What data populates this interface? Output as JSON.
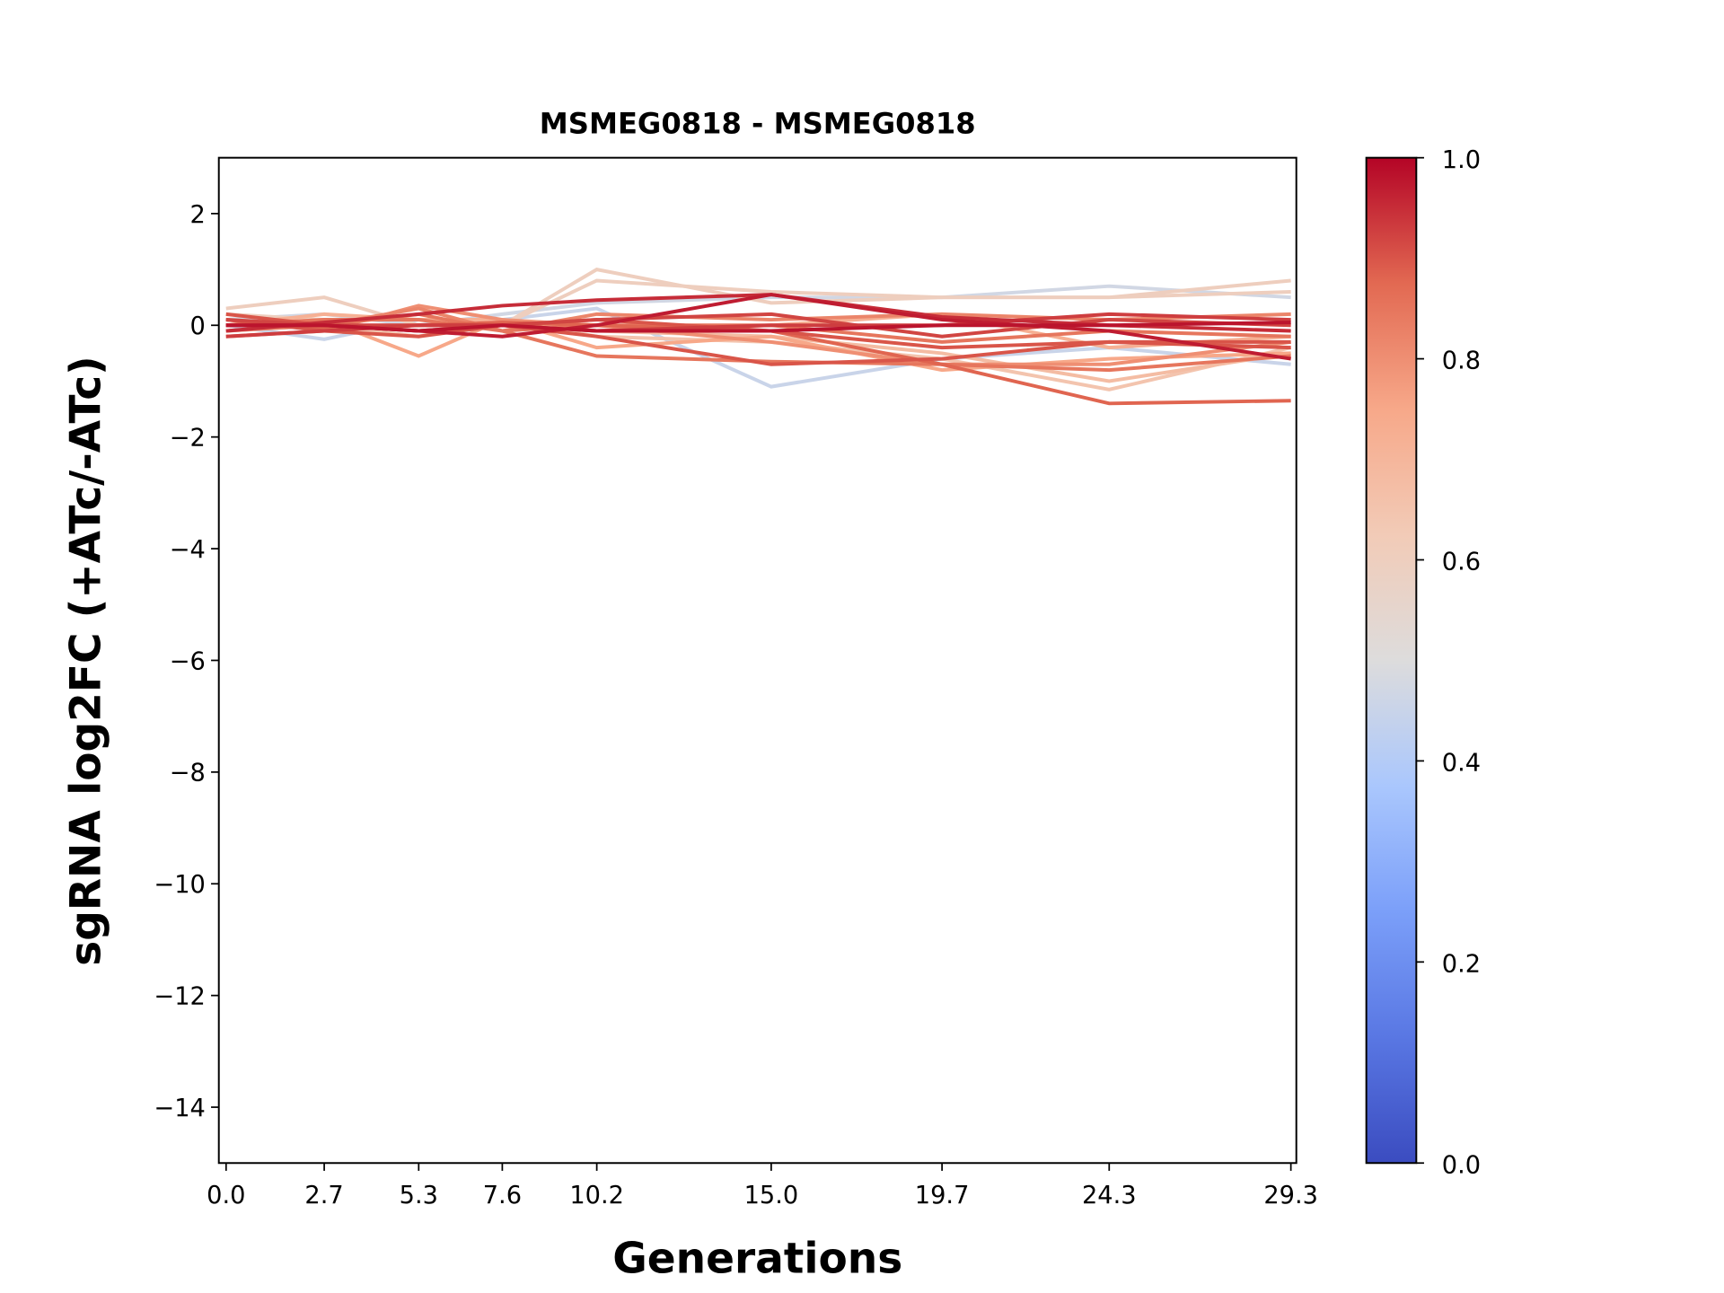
{
  "chart_data": {
    "type": "line",
    "title": "MSMEG0818 - MSMEG0818",
    "xlabel": "Generations",
    "ylabel": "sgRNA log2FC (+ATc/-ATc)",
    "x": [
      0.0,
      2.7,
      5.3,
      7.6,
      10.2,
      15.0,
      19.7,
      24.3,
      29.3
    ],
    "x_tick_labels": [
      "0.0",
      "2.7",
      "5.3",
      "7.6",
      "10.2",
      "15.0",
      "19.7",
      "24.3",
      "29.3"
    ],
    "xlim": [
      -0.2,
      29.45
    ],
    "ylim": [
      -15,
      3
    ],
    "y_ticks": [
      2,
      0,
      -2,
      -4,
      -6,
      -8,
      -10,
      -12,
      -14
    ],
    "y_tick_labels": [
      "2",
      "0",
      "−2",
      "−4",
      "−6",
      "−8",
      "−10",
      "−12",
      "−14"
    ],
    "grid": false,
    "colorbar": {
      "colormap": "coolwarm",
      "range": [
        0.0,
        1.0
      ],
      "tick_values": [
        0.0,
        0.2,
        0.4,
        0.6,
        0.8,
        1.0
      ],
      "tick_labels": [
        "0.0",
        "0.2",
        "0.4",
        "0.6",
        "0.8",
        "1.0"
      ],
      "stops": [
        [
          0.0,
          "#3b4cc0"
        ],
        [
          0.125,
          "#5977e3"
        ],
        [
          0.25,
          "#7b9ff9"
        ],
        [
          0.375,
          "#aac7fd"
        ],
        [
          0.5,
          "#dddcdc"
        ],
        [
          0.625,
          "#f2cbb7"
        ],
        [
          0.75,
          "#f7a889"
        ],
        [
          0.875,
          "#e26952"
        ],
        [
          1.0,
          "#b40426"
        ]
      ]
    },
    "series": [
      {
        "color_value": 0.45,
        "values": [
          0.0,
          -0.25,
          0.1,
          0.1,
          0.3,
          -1.1,
          -0.6,
          -0.4,
          -0.7
        ]
      },
      {
        "color_value": 0.47,
        "values": [
          0.1,
          0.2,
          0.0,
          0.2,
          0.4,
          0.5,
          0.5,
          0.7,
          0.5
        ]
      },
      {
        "color_value": 0.6,
        "values": [
          0.3,
          0.5,
          0.0,
          0.0,
          1.0,
          0.4,
          0.5,
          0.5,
          0.8
        ]
      },
      {
        "color_value": 0.6,
        "values": [
          0.2,
          0.1,
          0.1,
          0.0,
          0.8,
          0.6,
          0.5,
          0.5,
          0.6
        ]
      },
      {
        "color_value": 0.65,
        "values": [
          0.1,
          0.0,
          -0.2,
          0.1,
          -0.2,
          -0.3,
          -0.6,
          -1.15,
          -0.4
        ]
      },
      {
        "color_value": 0.68,
        "values": [
          -0.1,
          0.0,
          0.0,
          0.0,
          -0.1,
          -0.2,
          -0.5,
          -1.0,
          -0.5
        ]
      },
      {
        "color_value": 0.72,
        "values": [
          0.0,
          0.2,
          0.1,
          0.1,
          -0.1,
          0.0,
          0.2,
          -0.4,
          -0.2
        ]
      },
      {
        "color_value": 0.75,
        "values": [
          0.0,
          0.1,
          -0.55,
          0.1,
          -0.4,
          -0.2,
          -0.8,
          -0.6,
          -0.5
        ]
      },
      {
        "color_value": 0.8,
        "values": [
          -0.2,
          -0.1,
          0.35,
          0.1,
          0.0,
          -0.3,
          -0.7,
          -0.7,
          -0.3
        ]
      },
      {
        "color_value": 0.82,
        "values": [
          -0.1,
          0.0,
          0.3,
          -0.1,
          0.2,
          0.1,
          0.2,
          0.1,
          0.2
        ]
      },
      {
        "color_value": 0.85,
        "values": [
          0.0,
          0.0,
          0.2,
          -0.1,
          -0.55,
          -0.65,
          -0.7,
          -0.8,
          -0.55
        ]
      },
      {
        "color_value": 0.85,
        "values": [
          0.0,
          0.1,
          0.1,
          -0.1,
          0.0,
          0.0,
          -0.3,
          -0.1,
          -0.2
        ]
      },
      {
        "color_value": 0.88,
        "values": [
          0.1,
          -0.05,
          0.0,
          0.05,
          0.0,
          -0.1,
          -0.7,
          -1.4,
          -1.35
        ]
      },
      {
        "color_value": 0.9,
        "values": [
          0.2,
          0.0,
          -0.1,
          0.0,
          -0.2,
          -0.7,
          -0.6,
          -0.3,
          -0.4
        ]
      },
      {
        "color_value": 0.9,
        "values": [
          0.1,
          -0.1,
          -0.2,
          0.0,
          0.1,
          -0.1,
          -0.4,
          -0.3,
          -0.3
        ]
      },
      {
        "color_value": 0.92,
        "values": [
          0.1,
          0.0,
          0.0,
          0.0,
          0.1,
          0.2,
          -0.2,
          0.1,
          0.0
        ]
      },
      {
        "color_value": 0.93,
        "values": [
          -0.2,
          -0.1,
          0.0,
          0.0,
          -0.1,
          0.0,
          0.0,
          0.2,
          0.1
        ]
      },
      {
        "color_value": 0.95,
        "values": [
          -0.1,
          0.05,
          0.2,
          0.35,
          0.45,
          0.55,
          0.15,
          0.0,
          -0.1
        ]
      },
      {
        "color_value": 0.97,
        "values": [
          0.0,
          0.0,
          -0.1,
          -0.2,
          0.0,
          0.55,
          0.1,
          -0.1,
          -0.6
        ]
      },
      {
        "color_value": 0.98,
        "values": [
          0.0,
          0.0,
          -0.1,
          0.0,
          -0.1,
          -0.1,
          0.0,
          0.0,
          0.05
        ]
      }
    ]
  }
}
